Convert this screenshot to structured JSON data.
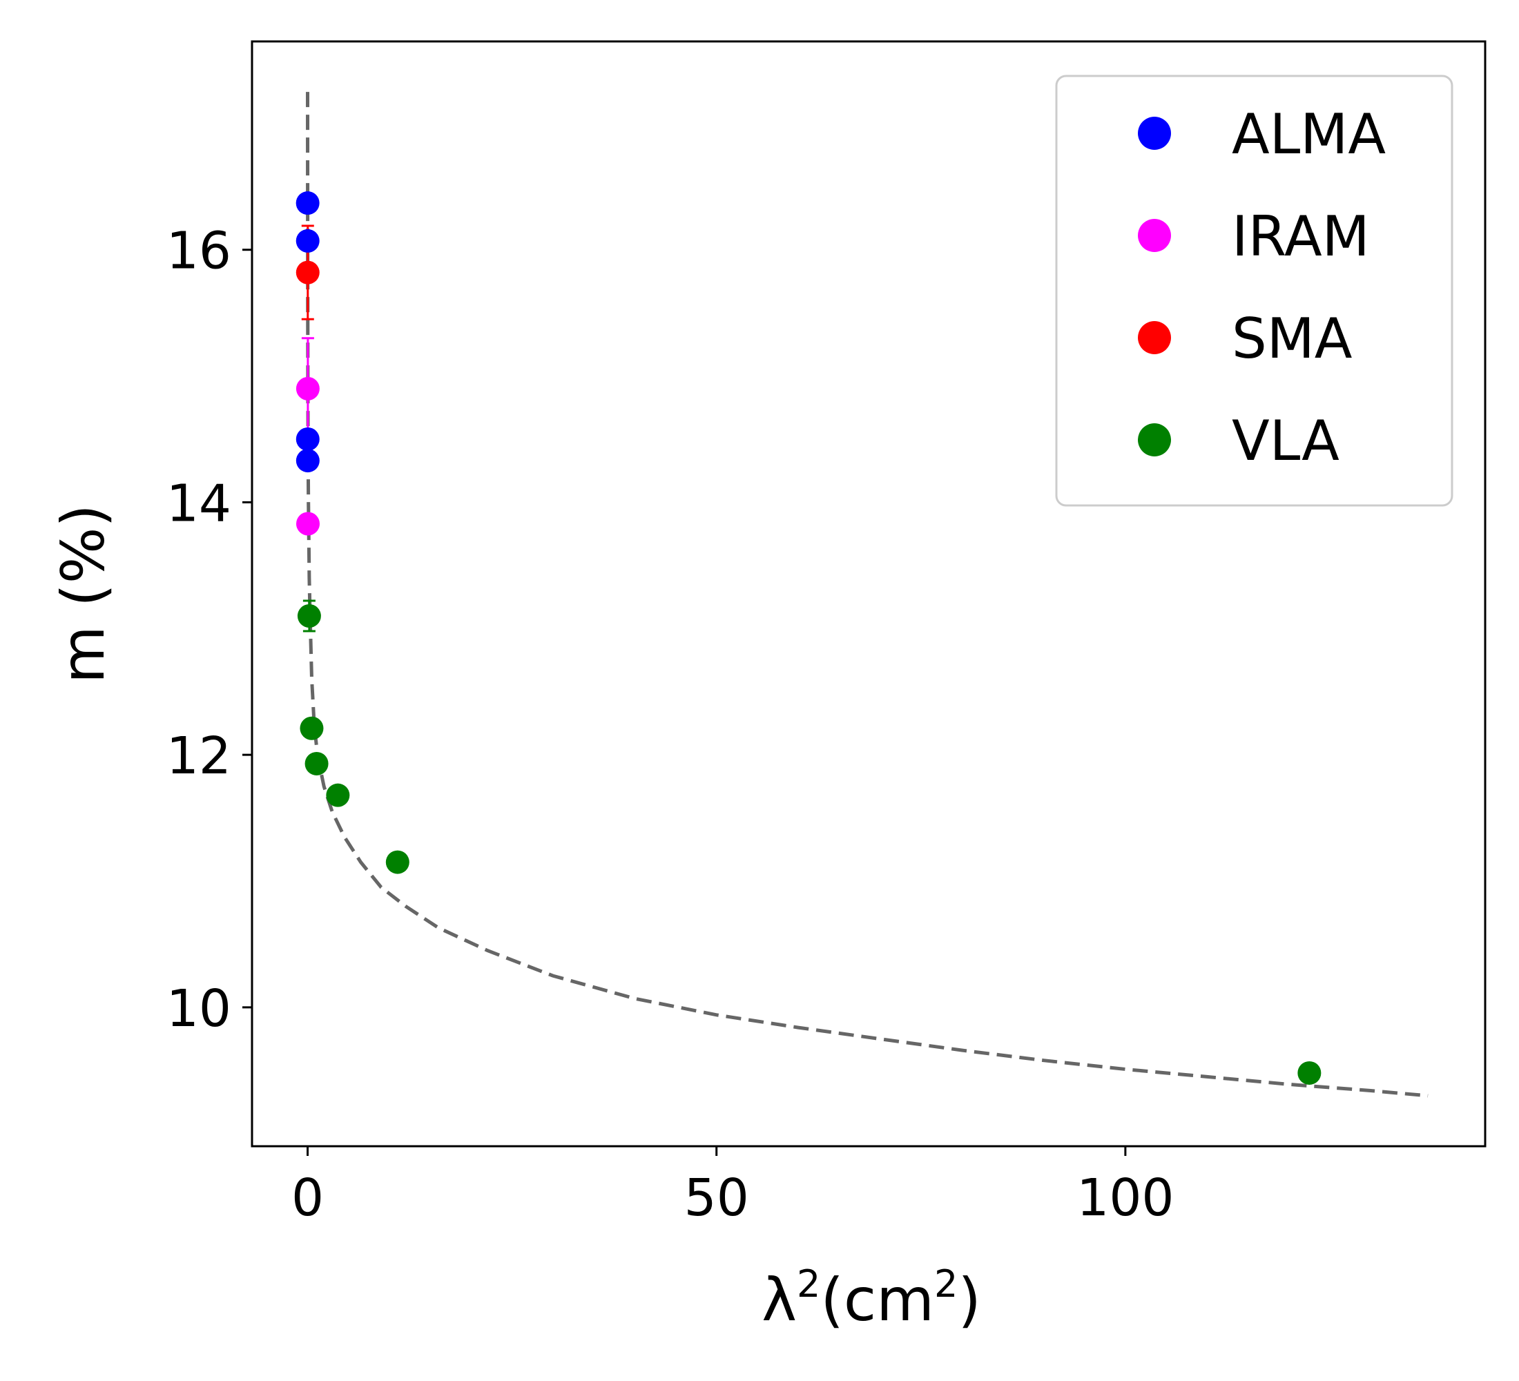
{
  "chart_data": {
    "type": "scatter",
    "title": "",
    "xlabel": {
      "base": "λ",
      "sup": "2",
      "unit": "cm",
      "unit_sup": "2"
    },
    "ylabel": "m (%)",
    "xlim": [
      -6.8,
      144
    ],
    "ylim": [
      8.9,
      17.65
    ],
    "xticks": [
      0,
      50,
      100
    ],
    "yticks": [
      10,
      12,
      14,
      16
    ],
    "legend_position": "top-right",
    "series": [
      {
        "name": "ALMA",
        "color": "#0000ff",
        "points": [
          {
            "x": 0.01,
            "y": 16.37
          },
          {
            "x": 0.015,
            "y": 16.07
          },
          {
            "x": 0.02,
            "y": 14.5
          },
          {
            "x": 0.025,
            "y": 14.33
          }
        ]
      },
      {
        "name": "IRAM",
        "color": "#ff00ff",
        "points": [
          {
            "x": 0.03,
            "y": 14.9,
            "err": 0.4
          },
          {
            "x": 0.04,
            "y": 13.83
          }
        ]
      },
      {
        "name": "SMA",
        "color": "#ff0000",
        "points": [
          {
            "x": 0.02,
            "y": 15.82,
            "err": 0.37
          }
        ]
      },
      {
        "name": "VLA",
        "color": "#008000",
        "points": [
          {
            "x": 0.2,
            "y": 13.1,
            "err": 0.12
          },
          {
            "x": 0.5,
            "y": 12.21
          },
          {
            "x": 1.1,
            "y": 11.93
          },
          {
            "x": 3.7,
            "y": 11.68
          },
          {
            "x": 11.0,
            "y": 11.15
          },
          {
            "x": 122.5,
            "y": 9.48
          }
        ]
      }
    ],
    "fit_curve": {
      "style": "dashed",
      "color": "#666666",
      "points": [
        [
          0.001,
          17.25
        ],
        [
          0.005,
          16.2
        ],
        [
          0.01,
          15.7
        ],
        [
          0.03,
          14.95
        ],
        [
          0.06,
          14.4
        ],
        [
          0.1,
          14.0
        ],
        [
          0.2,
          13.4
        ],
        [
          0.3,
          13.1
        ],
        [
          0.5,
          12.6
        ],
        [
          0.8,
          12.25
        ],
        [
          1.2,
          12.0
        ],
        [
          2,
          11.75
        ],
        [
          3,
          11.55
        ],
        [
          4.5,
          11.35
        ],
        [
          6.5,
          11.15
        ],
        [
          9,
          10.95
        ],
        [
          12,
          10.8
        ],
        [
          16,
          10.63
        ],
        [
          22,
          10.45
        ],
        [
          30,
          10.25
        ],
        [
          40,
          10.07
        ],
        [
          50,
          9.94
        ],
        [
          60,
          9.84
        ],
        [
          70,
          9.75
        ],
        [
          80,
          9.66
        ],
        [
          90,
          9.58
        ],
        [
          100,
          9.51
        ],
        [
          110,
          9.45
        ],
        [
          120,
          9.39
        ],
        [
          130,
          9.34
        ],
        [
          137,
          9.3
        ]
      ]
    }
  }
}
